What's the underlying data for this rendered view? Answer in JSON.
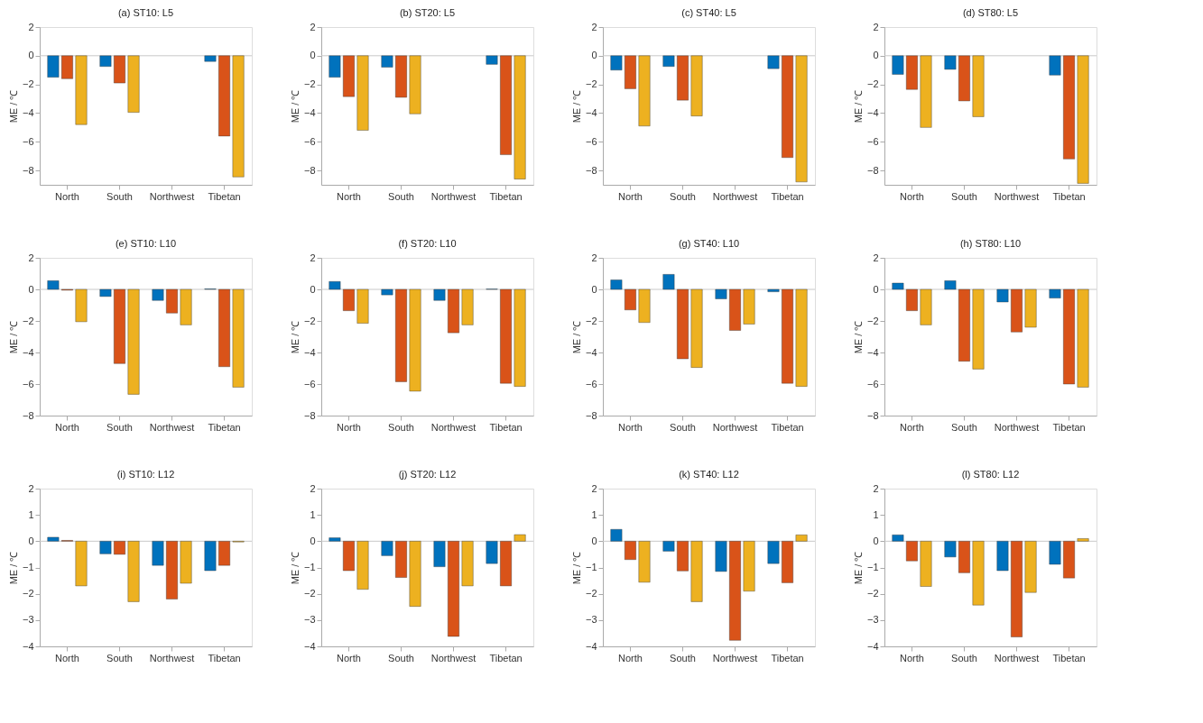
{
  "chart_data": [
    {
      "type": "bar",
      "title": "(a) ST10: L5",
      "ylabel": "ME / ℃",
      "categories": [
        "North",
        "South",
        "Northwest",
        "Tibetan"
      ],
      "series": [
        {
          "color": "#0072bd",
          "values": [
            -1.5,
            -0.75,
            null,
            -0.4
          ]
        },
        {
          "color": "#d95319",
          "values": [
            -1.6,
            -1.9,
            null,
            -5.6
          ]
        },
        {
          "color": "#edb120",
          "values": [
            -4.8,
            -3.95,
            null,
            -8.45
          ]
        }
      ],
      "ylim": [
        -9,
        2
      ],
      "yticks": [
        -8,
        -6,
        -4,
        -2,
        0,
        2
      ],
      "ref_lines": [
        {
          "axis": "y",
          "value": 0,
          "color": "#c8c8c8"
        }
      ],
      "grid": false,
      "legend": false
    },
    {
      "type": "bar",
      "title": "(b) ST20: L5",
      "ylabel": "ME / ℃",
      "categories": [
        "North",
        "South",
        "Northwest",
        "Tibetan"
      ],
      "series": [
        {
          "color": "#0072bd",
          "values": [
            -1.5,
            -0.8,
            null,
            -0.6
          ]
        },
        {
          "color": "#d95319",
          "values": [
            -2.85,
            -2.9,
            null,
            -6.9
          ]
        },
        {
          "color": "#edb120",
          "values": [
            -5.2,
            -4.05,
            null,
            -8.6
          ]
        }
      ],
      "ylim": [
        -9,
        2
      ],
      "yticks": [
        -8,
        -6,
        -4,
        -2,
        0,
        2
      ],
      "ref_lines": [
        {
          "axis": "y",
          "value": 0,
          "color": "#c8c8c8"
        }
      ],
      "grid": false,
      "legend": false
    },
    {
      "type": "bar",
      "title": "(c) ST40: L5",
      "ylabel": "ME / ℃",
      "categories": [
        "North",
        "South",
        "Northwest",
        "Tibetan"
      ],
      "series": [
        {
          "color": "#0072bd",
          "values": [
            -1.0,
            -0.75,
            null,
            -0.9
          ]
        },
        {
          "color": "#d95319",
          "values": [
            -2.3,
            -3.1,
            null,
            -7.1
          ]
        },
        {
          "color": "#edb120",
          "values": [
            -4.9,
            -4.2,
            null,
            -8.8
          ]
        }
      ],
      "ylim": [
        -9,
        2
      ],
      "yticks": [
        -8,
        -6,
        -4,
        -2,
        0,
        2
      ],
      "ref_lines": [
        {
          "axis": "y",
          "value": 0,
          "color": "#c8c8c8"
        }
      ],
      "grid": false,
      "legend": false
    },
    {
      "type": "bar",
      "title": "(d) ST80: L5",
      "ylabel": "ME / ℃",
      "categories": [
        "North",
        "South",
        "Northwest",
        "Tibetan"
      ],
      "series": [
        {
          "color": "#0072bd",
          "values": [
            -1.3,
            -0.95,
            null,
            -1.35
          ]
        },
        {
          "color": "#d95319",
          "values": [
            -2.35,
            -3.15,
            null,
            -7.2
          ]
        },
        {
          "color": "#edb120",
          "values": [
            -5.0,
            -4.25,
            null,
            -8.9
          ]
        }
      ],
      "ylim": [
        -9,
        2
      ],
      "yticks": [
        -8,
        -6,
        -4,
        -2,
        0,
        2
      ],
      "ref_lines": [
        {
          "axis": "y",
          "value": 0,
          "color": "#c8c8c8"
        }
      ],
      "grid": false,
      "legend": false
    },
    {
      "type": "bar",
      "title": "(e) ST10: L10",
      "ylabel": "ME / ℃",
      "categories": [
        "North",
        "South",
        "Northwest",
        "Tibetan"
      ],
      "series": [
        {
          "color": "#0072bd",
          "values": [
            0.55,
            -0.45,
            -0.7,
            0.03
          ]
        },
        {
          "color": "#d95319",
          "values": [
            -0.05,
            -4.7,
            -1.5,
            -4.9
          ]
        },
        {
          "color": "#edb120",
          "values": [
            -2.05,
            -6.65,
            -2.25,
            -6.2
          ]
        }
      ],
      "ylim": [
        -8,
        2
      ],
      "yticks": [
        -8,
        -6,
        -4,
        -2,
        0,
        2
      ],
      "ref_lines": [
        {
          "axis": "y",
          "value": 0,
          "color": "#c8c8c8"
        }
      ],
      "grid": false,
      "legend": false
    },
    {
      "type": "bar",
      "title": "(f) ST20: L10",
      "ylabel": "ME / ℃",
      "categories": [
        "North",
        "South",
        "Northwest",
        "Tibetan"
      ],
      "series": [
        {
          "color": "#0072bd",
          "values": [
            0.5,
            -0.35,
            -0.7,
            0.02
          ]
        },
        {
          "color": "#d95319",
          "values": [
            -1.35,
            -5.85,
            -2.75,
            -5.95
          ]
        },
        {
          "color": "#edb120",
          "values": [
            -2.15,
            -6.45,
            -2.25,
            -6.15
          ]
        }
      ],
      "ylim": [
        -8,
        2
      ],
      "yticks": [
        -8,
        -6,
        -4,
        -2,
        0,
        2
      ],
      "ref_lines": [
        {
          "axis": "y",
          "value": 0,
          "color": "#c8c8c8"
        }
      ],
      "grid": false,
      "legend": false
    },
    {
      "type": "bar",
      "title": "(g) ST40: L10",
      "ylabel": "ME / ℃",
      "categories": [
        "North",
        "South",
        "Northwest",
        "Tibetan"
      ],
      "series": [
        {
          "color": "#0072bd",
          "values": [
            0.6,
            0.95,
            -0.6,
            -0.15
          ]
        },
        {
          "color": "#d95319",
          "values": [
            -1.3,
            -4.4,
            -2.6,
            -5.95
          ]
        },
        {
          "color": "#edb120",
          "values": [
            -2.1,
            -4.95,
            -2.2,
            -6.15
          ]
        }
      ],
      "ylim": [
        -8,
        2
      ],
      "yticks": [
        -8,
        -6,
        -4,
        -2,
        0,
        2
      ],
      "ref_lines": [
        {
          "axis": "y",
          "value": 0,
          "color": "#c8c8c8"
        }
      ],
      "grid": false,
      "legend": false
    },
    {
      "type": "bar",
      "title": "(h) ST80: L10",
      "ylabel": "ME / ℃",
      "categories": [
        "North",
        "South",
        "Northwest",
        "Tibetan"
      ],
      "series": [
        {
          "color": "#0072bd",
          "values": [
            0.4,
            0.55,
            -0.8,
            -0.55
          ]
        },
        {
          "color": "#d95319",
          "values": [
            -1.35,
            -4.55,
            -2.7,
            -6.0
          ]
        },
        {
          "color": "#edb120",
          "values": [
            -2.25,
            -5.05,
            -2.4,
            -6.2
          ]
        }
      ],
      "ylim": [
        -8,
        2
      ],
      "yticks": [
        -8,
        -6,
        -4,
        -2,
        0,
        2
      ],
      "ref_lines": [
        {
          "axis": "y",
          "value": 0,
          "color": "#c8c8c8"
        }
      ],
      "grid": false,
      "legend": false
    },
    {
      "type": "bar",
      "title": "(i) ST10: L12",
      "ylabel": "ME / ℃",
      "categories": [
        "North",
        "South",
        "Northwest",
        "Tibetan"
      ],
      "series": [
        {
          "color": "#0072bd",
          "values": [
            0.15,
            -0.48,
            -0.92,
            -1.12
          ]
        },
        {
          "color": "#d95319",
          "values": [
            0.03,
            -0.5,
            -2.2,
            -0.92
          ]
        },
        {
          "color": "#edb120",
          "values": [
            -1.7,
            -2.3,
            -1.6,
            -0.03
          ]
        }
      ],
      "ylim": [
        -4,
        2
      ],
      "yticks": [
        -4,
        -3,
        -2,
        -1,
        0,
        1,
        2
      ],
      "ref_lines": [
        {
          "axis": "y",
          "value": 0,
          "color": "#c8c8c8"
        }
      ],
      "grid": false,
      "legend": false
    },
    {
      "type": "bar",
      "title": "(j) ST20: L12",
      "ylabel": "ME / ℃",
      "categories": [
        "North",
        "South",
        "Northwest",
        "Tibetan"
      ],
      "series": [
        {
          "color": "#0072bd",
          "values": [
            0.13,
            -0.55,
            -0.97,
            -0.85
          ]
        },
        {
          "color": "#d95319",
          "values": [
            -1.12,
            -1.38,
            -3.62,
            -1.7
          ]
        },
        {
          "color": "#edb120",
          "values": [
            -1.83,
            -2.48,
            -1.7,
            0.25
          ]
        }
      ],
      "ylim": [
        -4,
        2
      ],
      "yticks": [
        -4,
        -3,
        -2,
        -1,
        0,
        1,
        2
      ],
      "ref_lines": [
        {
          "axis": "y",
          "value": 0,
          "color": "#c8c8c8"
        }
      ],
      "grid": false,
      "legend": false
    },
    {
      "type": "bar",
      "title": "(k) ST40: L12",
      "ylabel": "ME / ℃",
      "categories": [
        "North",
        "South",
        "Northwest",
        "Tibetan"
      ],
      "series": [
        {
          "color": "#0072bd",
          "values": [
            0.45,
            -0.38,
            -1.15,
            -0.85
          ]
        },
        {
          "color": "#d95319",
          "values": [
            -0.7,
            -1.13,
            -3.77,
            -1.58
          ]
        },
        {
          "color": "#edb120",
          "values": [
            -1.56,
            -2.3,
            -1.9,
            0.24
          ]
        }
      ],
      "ylim": [
        -4,
        2
      ],
      "yticks": [
        -4,
        -3,
        -2,
        -1,
        0,
        1,
        2
      ],
      "ref_lines": [
        {
          "axis": "y",
          "value": 0,
          "color": "#c8c8c8"
        }
      ],
      "grid": false,
      "legend": false
    },
    {
      "type": "bar",
      "title": "(l) ST80: L12",
      "ylabel": "ME / ℃",
      "categories": [
        "North",
        "South",
        "Northwest",
        "Tibetan"
      ],
      "series": [
        {
          "color": "#0072bd",
          "values": [
            0.24,
            -0.6,
            -1.12,
            -0.88
          ]
        },
        {
          "color": "#d95319",
          "values": [
            -0.75,
            -1.2,
            -3.64,
            -1.4
          ]
        },
        {
          "color": "#edb120",
          "values": [
            -1.72,
            -2.43,
            -1.95,
            0.1
          ]
        }
      ],
      "ylim": [
        -4,
        2
      ],
      "yticks": [
        -4,
        -3,
        -2,
        -1,
        0,
        1,
        2
      ],
      "ref_lines": [
        {
          "axis": "y",
          "value": 0,
          "color": "#c8c8c8"
        }
      ],
      "grid": false,
      "legend": false
    }
  ]
}
